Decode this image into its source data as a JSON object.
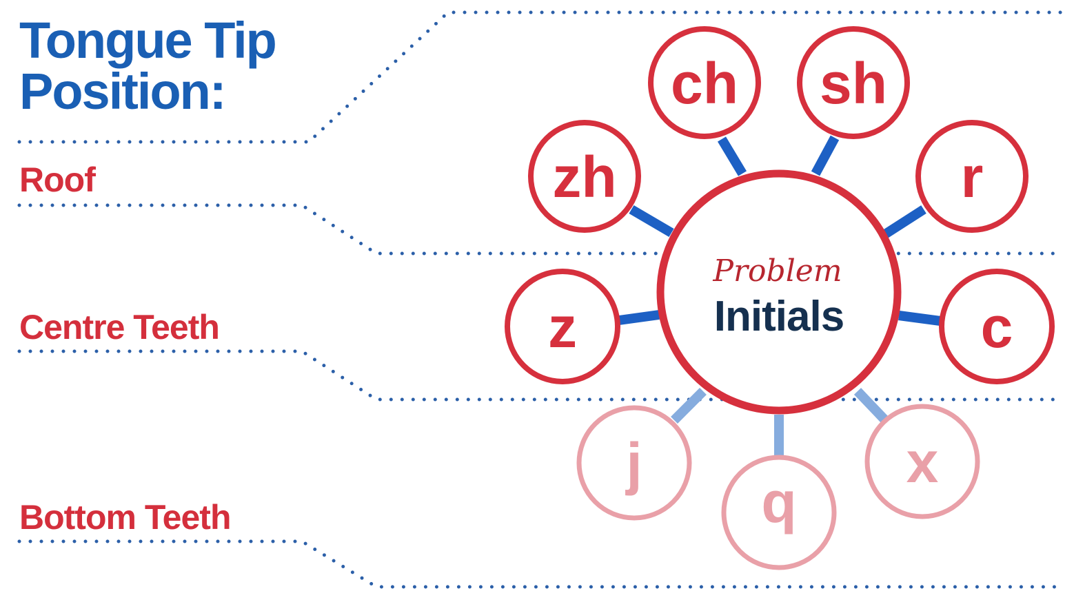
{
  "title": {
    "line1": "Tongue Tip",
    "line2": "Position:"
  },
  "zones": {
    "roof": "Roof",
    "centre": "Centre Teeth",
    "bottom": "Bottom Teeth"
  },
  "hub": {
    "script_label": "Problem",
    "main_label": "Initials"
  },
  "nodes": {
    "zh": "zh",
    "ch": "ch",
    "sh": "sh",
    "r": "r",
    "z": "z",
    "c": "c",
    "j": "j",
    "q": "q",
    "x": "x"
  },
  "colors": {
    "title_blue": "#1a5fb4",
    "label_red": "#d42f3c",
    "circle_red": "#d6303d",
    "faded_red": "#e9a0a8",
    "connector_blue": "#1d60c4",
    "faded_connector": "#86acde",
    "hub_text_navy": "#15304f",
    "dotted_line": "#2b5fa8"
  }
}
